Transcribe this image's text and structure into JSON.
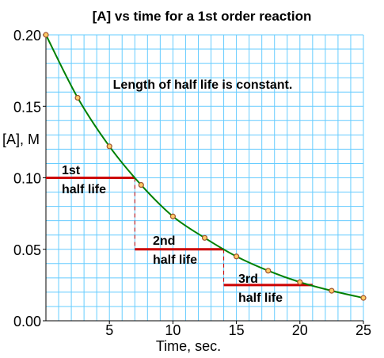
{
  "chart_data": {
    "type": "line",
    "title": "[A] vs time for a 1st order reaction",
    "xlabel": "Time, sec.",
    "ylabel": "[A], M",
    "xlim": [
      0,
      25
    ],
    "ylim": [
      0,
      0.2
    ],
    "x_ticks": [
      "5",
      "10",
      "15",
      "20",
      "25"
    ],
    "y_ticks": [
      "0.00",
      "0.05",
      "0.10",
      "0.15",
      "0.20"
    ],
    "grid": true,
    "colors": {
      "grid": "#66ccff",
      "curve": "#008000",
      "points_stroke": "#a0522d",
      "points_fill": "#ffcc66",
      "half_life_lines": "#cc0000"
    },
    "series": [
      {
        "x": [
          0,
          2.5,
          5,
          7.5,
          10,
          12.5,
          15,
          17.5,
          20,
          22.5,
          25
        ],
        "values": [
          0.2,
          0.156,
          0.122,
          0.095,
          0.073,
          0.058,
          0.045,
          0.035,
          0.027,
          0.021,
          0.016
        ]
      }
    ],
    "annotations": {
      "main": "Length of half life is constant.",
      "half_lives": [
        {
          "line1": "1st",
          "line2": "half life",
          "t_start": 0,
          "t_end": 7,
          "conc": 0.1
        },
        {
          "line1": "2nd",
          "line2": "half life",
          "t_start": 7,
          "t_end": 14,
          "conc": 0.05
        },
        {
          "line1": "3rd",
          "line2": "half life",
          "t_start": 14,
          "t_end": 21,
          "conc": 0.025
        }
      ]
    }
  }
}
